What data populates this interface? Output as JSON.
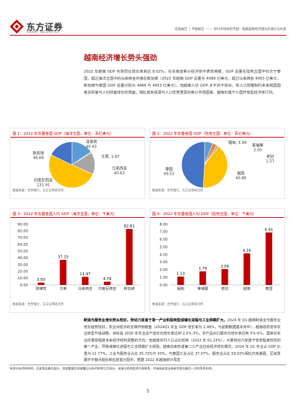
{
  "header": {
    "logo_cn": "东方证券",
    "logo_en": "ORIENT SECURITIES",
    "breadcrumbs": [
      "宏观报告",
      "专题报告",
      "——",
      "新兴市场研究专题：图解越南经济增长的潜力与约束"
    ]
  },
  "section_title": "越南经济增长势头强劲",
  "intro": "2022 年越南 GDP 实际同比增长率高达 8.02%，在东南亚新兴经济体中表现亮眼，GDP 总量在陆地五国中仅次于泰国，超过海洋五国中的马来西亚并接近新加坡（2022 年越南 GDP 总量为 4088 亿美元，超过马来西亚 4063 亿美元，新加坡与泰国 GDP 总量分别为 4668 与 4953 亿美元）。但越南人均 GDP 水平并不突出，受人口规模制约未来我国国家总财富与人均财富增长的局面，相比其他资源与人口优势更具的新兴市场国家，越南仍属于小国开放型经济体行列。",
  "bottom_text": {
    "lead": "制造与服务业增长势头较好，劳动力逐渐于第一产业积极转型城镇化进程与工业规模扩大。",
    "body": "2024 年 Q1 越南制造业与服务业增长趋势较好，农业对经济的支撑作用稳健（2024Q1 农业 GDP 增长率为 2.98%，与前期数据基本持平），越南政府发布农业转型升级战略，目标是 2030 年农业总产值年均增长率达到 2.5%-3%，农产品出口额年均增长率达到 5%-6%，国家对农业的重视程度未来经济结构调整的方向，但越南农村人口占比较高（2022 年 61.23%），大量劳动力受困于较低程度较低的第一产业，导致城镇化进程与工业规模扩大受阻。越南向来形成第二三产业拉动经济增长模式，2024 年 Q1 农业占 GDP 比重为 11.77%，工业与服务业占比 35.73%与 43%，与泰国工业占比 37.07%，服务业占比 59.03%相比仍有差距。区域发展不平衡问题反映在财富分配中，根据 2022 年越南统计局发"
  },
  "footer_note": "有关分析师的申明，见本报告最后部分，其他重要信息披露见分析师申明之后部分，或请与您的投资代表联系，并请阅读本证券研究报告最后一页的免责申明。",
  "page_number": "5",
  "source_text": "数据来源：世界银行，东方证券研究所",
  "colors": {
    "brand_red": "#c00000",
    "pie_blue": "#5b9bd5",
    "pie_orange": "#ed7d31",
    "pie_gray": "#a5a5a5",
    "pie_yellow": "#ffc000",
    "pie_lightblue": "#4472c4",
    "pie_peach": "#f4b183",
    "bar_red": "#c00000"
  },
  "chart_data": [
    {
      "type": "pie",
      "title": "图 1：2022 年东盟各国 GDP（海洋五国，单位：百亿美元）",
      "series": [
        {
          "name": "菲律宾",
          "value": 40.43,
          "color": "#5b9bd5"
        },
        {
          "name": "文莱",
          "value": 1.67,
          "color": "#ed7d31"
        },
        {
          "name": "马来西亚",
          "value": 40.63,
          "color": "#a5a5a5"
        },
        {
          "name": "印度尼西亚",
          "value": 131.91,
          "color": "#ffc000"
        },
        {
          "name": "新加坡",
          "value": 46.68,
          "color": "#4472c4"
        }
      ]
    },
    {
      "type": "pie",
      "title": "图 2：2022 年东盟各国 GDP（陆地五国，单位：百亿美元）",
      "series": [
        {
          "name": "缅甸",
          "value": 5.94,
          "color": "#5b9bd5"
        },
        {
          "name": "柬埔寨",
          "value": 3.0,
          "color": "#ed7d31"
        },
        {
          "name": "老挝",
          "value": 1.57,
          "color": "#a5a5a5"
        },
        {
          "name": "越南",
          "value": 40.88,
          "color": "#ffc000"
        },
        {
          "name": "泰国",
          "value": 49.53,
          "color": "#4472c4"
        }
      ]
    },
    {
      "type": "bar",
      "title": "图 3：2022 年东盟各国人均 GDP（海洋五国，单位：千美元）",
      "categories": [
        "菲律宾",
        "文莱",
        "马来西亚",
        "印度尼西亚",
        "新加坡"
      ],
      "values": [
        3.5,
        37.15,
        11.97,
        4.79,
        82.81
      ],
      "value_labels": [
        "3.50",
        "37.15",
        "11.97",
        "4.79",
        "82.81"
      ],
      "ylim": [
        0,
        90
      ],
      "yticks": [
        "0.00",
        "10.00",
        "20.00",
        "30.00",
        "40.00",
        "50.00",
        "60.00",
        "70.00",
        "80.00",
        "90.00"
      ],
      "ytick_values": [
        0,
        10,
        20,
        30,
        40,
        50,
        60,
        70,
        80,
        90
      ],
      "color": "#c00000"
    },
    {
      "type": "bar",
      "title": "图 4：2022 年东盟各国人均 GDP（陆地五国，单位：千美元）",
      "categories": [
        "缅甸",
        "柬埔寨",
        "老挝",
        "越南",
        "泰国"
      ],
      "values": [
        1.1,
        1.79,
        2.09,
        4.16,
        6.91
      ],
      "value_labels": [
        "1.10",
        "1.79",
        "2.09",
        "4.16",
        "6.91"
      ],
      "ylim": [
        0,
        8
      ],
      "yticks": [
        "0.00",
        "1.00",
        "2.00",
        "3.00",
        "4.00",
        "5.00",
        "6.00",
        "7.00",
        "8.00"
      ],
      "ytick_values": [
        0,
        1,
        2,
        3,
        4,
        5,
        6,
        7,
        8
      ],
      "color": "#c00000"
    }
  ]
}
